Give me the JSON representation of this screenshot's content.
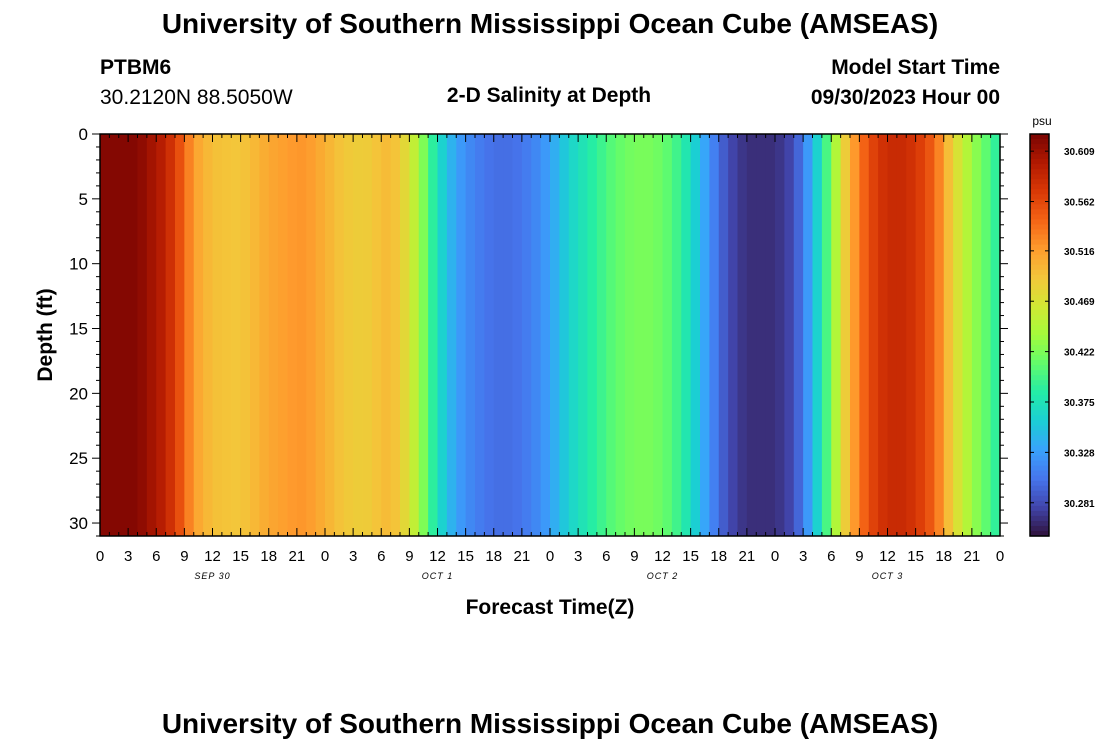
{
  "page": {
    "title_top": "University of Southern Mississippi Ocean Cube (AMSEAS)",
    "title_bottom": "University of Southern Mississippi Ocean Cube (AMSEAS)",
    "station_id": "PTBM6",
    "coords": "30.2120N  88.5050W",
    "plot_title": "2-D Salinity at Depth",
    "start_label": "Model Start Time",
    "start_value": "09/30/2023 Hour 00"
  },
  "chart_data": {
    "type": "heatmap",
    "title": "2-D Salinity at Depth",
    "xlabel": "Forecast Time(Z)",
    "ylabel": "Depth (ft)",
    "x_hours": [
      0,
      3,
      6,
      9,
      12,
      15,
      18,
      21,
      24,
      27,
      30,
      33,
      36,
      39,
      42,
      45,
      48,
      51,
      54,
      57,
      60,
      63,
      66,
      69,
      72,
      75,
      78,
      81,
      84,
      87,
      90,
      93,
      96
    ],
    "x_tick_labels": [
      "0",
      "3",
      "6",
      "9",
      "12",
      "15",
      "18",
      "21",
      "0",
      "3",
      "6",
      "9",
      "12",
      "15",
      "18",
      "21",
      "0",
      "3",
      "6",
      "9",
      "12",
      "15",
      "18",
      "21",
      "0",
      "3",
      "6",
      "9",
      "12",
      "15",
      "18",
      "21",
      "0"
    ],
    "date_labels": [
      {
        "hour": 12,
        "text": "SEP 30"
      },
      {
        "hour": 36,
        "text": "OCT 1"
      },
      {
        "hour": 60,
        "text": "OCT 2"
      },
      {
        "hour": 84,
        "text": "OCT 3"
      }
    ],
    "ylim": [
      0,
      31
    ],
    "y_ticks": [
      0,
      5,
      10,
      15,
      20,
      25,
      30
    ],
    "y_inverted": true,
    "colorbar": {
      "unit": "psu",
      "range": [
        30.25,
        30.625
      ],
      "tick_values": [
        30.609,
        30.562,
        30.516,
        30.469,
        30.422,
        30.375,
        30.328,
        30.281
      ],
      "tick_labels": [
        "30.609",
        "30.562",
        "30.516",
        "30.469",
        "30.422",
        "30.375",
        "30.328",
        "30.281"
      ]
    },
    "colorscale": [
      "#30123b",
      "#4145ab",
      "#4675ed",
      "#39a2fc",
      "#1bcfd4",
      "#24eca6",
      "#61fc6c",
      "#a4fc3b",
      "#d1e834",
      "#f3c63a",
      "#fe9b2d",
      "#f36315",
      "#d93806",
      "#b11901",
      "#7a0402"
    ],
    "salinity_by_hour": [
      [
        0,
        30.62
      ],
      [
        4,
        30.62
      ],
      [
        7,
        30.59
      ],
      [
        9,
        30.545
      ],
      [
        10,
        30.515
      ],
      [
        12,
        30.495
      ],
      [
        15,
        30.49
      ],
      [
        18,
        30.51
      ],
      [
        21,
        30.52
      ],
      [
        22,
        30.52
      ],
      [
        24,
        30.505
      ],
      [
        26,
        30.49
      ],
      [
        28,
        30.485
      ],
      [
        30,
        30.495
      ],
      [
        31,
        30.5
      ],
      [
        33,
        30.47
      ],
      [
        34,
        30.44
      ],
      [
        36,
        30.37
      ],
      [
        38,
        30.33
      ],
      [
        40,
        30.31
      ],
      [
        42,
        30.3
      ],
      [
        44,
        30.3
      ],
      [
        46,
        30.31
      ],
      [
        48,
        30.33
      ],
      [
        50,
        30.36
      ],
      [
        52,
        30.38
      ],
      [
        53,
        30.39
      ],
      [
        55,
        30.41
      ],
      [
        57,
        30.42
      ],
      [
        59,
        30.42
      ],
      [
        61,
        30.405
      ],
      [
        63,
        30.37
      ],
      [
        65,
        30.32
      ],
      [
        67,
        30.28
      ],
      [
        69,
        30.265
      ],
      [
        72,
        30.265
      ],
      [
        74,
        30.28
      ],
      [
        76,
        30.34
      ],
      [
        77,
        30.38
      ],
      [
        78,
        30.42
      ],
      [
        79,
        30.47
      ],
      [
        81,
        30.535
      ],
      [
        83,
        30.575
      ],
      [
        85,
        30.585
      ],
      [
        87,
        30.575
      ],
      [
        89,
        30.545
      ],
      [
        91,
        30.48
      ],
      [
        93,
        30.435
      ],
      [
        95,
        30.4
      ],
      [
        96,
        30.38
      ]
    ]
  }
}
